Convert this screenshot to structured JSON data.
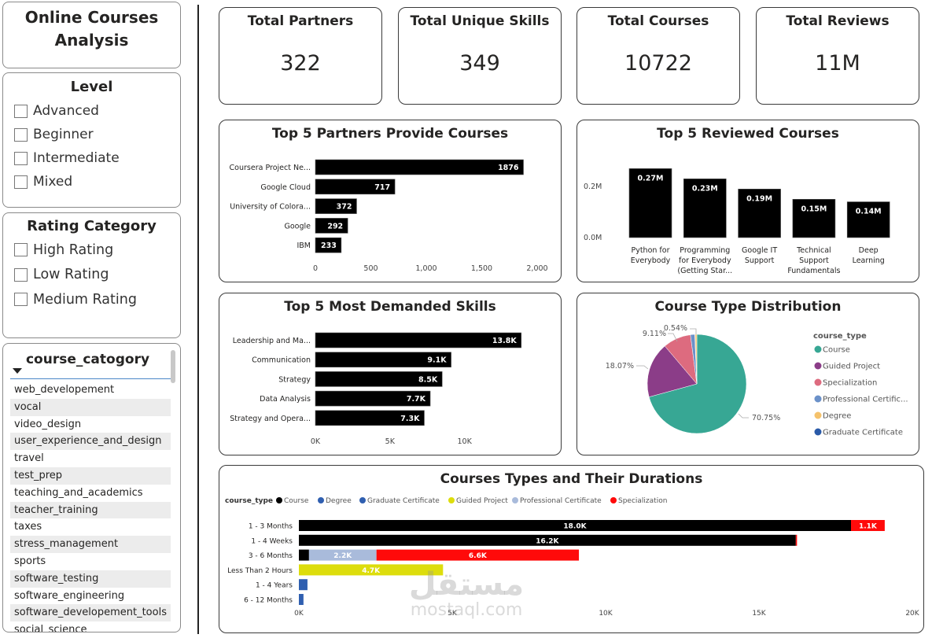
{
  "app": {
    "title": "Online Courses Analysis"
  },
  "level_slicer": {
    "title": "Level",
    "items": [
      "Advanced",
      "Beginner",
      "Intermediate",
      "Mixed"
    ]
  },
  "rating_slicer": {
    "title": "Rating Category",
    "items": [
      "High Rating",
      "Low Rating",
      "Medium Rating"
    ]
  },
  "category_slicer": {
    "title": "course_catogory",
    "items": [
      "web_developement",
      "vocal",
      "video_design",
      "user_experience_and_design",
      "travel",
      "test_prep",
      "teaching_and_academics",
      "teacher_training",
      "taxes",
      "stress_management",
      "sports",
      "software_testing",
      "software_engineering",
      "software_developement_tools",
      "social_science"
    ]
  },
  "kpis": [
    {
      "title": "Total Partners",
      "value": "322"
    },
    {
      "title": "Total Unique Skills",
      "value": "349"
    },
    {
      "title": "Total Courses",
      "value": "10722"
    },
    {
      "title": "Total Reviews",
      "value": "11M"
    }
  ],
  "colors": {
    "bar": "#000000",
    "course": "#37a794",
    "guided_project": "#8b3d88",
    "specialization": "#dd6b7f",
    "professional_certificate": "#6b91c9",
    "degree": "#f5c26b",
    "graduate_certificate": "#2a5aa8",
    "stack_course": "#000000",
    "stack_degree": "#2f5fb0",
    "stack_graduate": "#2f5fb0",
    "stack_guided": "#dddd0c",
    "stack_prof": "#a9bbdb",
    "stack_spec": "#ff0a0a"
  },
  "chart_data": [
    {
      "id": "partners",
      "type": "bar",
      "orientation": "horizontal",
      "title": "Top 5 Partners Provide Courses",
      "categories": [
        "Coursera Project Ne...",
        "Google Cloud",
        "University of Colora...",
        "Google",
        "IBM"
      ],
      "values": [
        1876,
        717,
        372,
        292,
        233
      ],
      "data_labels": [
        "1876",
        "717",
        "372",
        "292",
        "233"
      ],
      "xlim": [
        0,
        2000
      ],
      "xticks": [
        0,
        500,
        1000,
        1500,
        2000
      ],
      "xtick_labels": [
        "0",
        "500",
        "1,000",
        "1,500",
        "2,000"
      ],
      "grid": false
    },
    {
      "id": "reviewed",
      "type": "bar",
      "orientation": "vertical",
      "title": "Top 5 Reviewed Courses",
      "categories": [
        [
          "Python for",
          "Everybody"
        ],
        [
          "Programming",
          "for Everybody",
          "(Getting Star..."
        ],
        [
          "Google IT",
          "Support"
        ],
        [
          "Technical",
          "Support",
          "Fundamentals"
        ],
        [
          "Deep",
          "Learning"
        ]
      ],
      "values": [
        0.27,
        0.23,
        0.19,
        0.15,
        0.14
      ],
      "data_labels": [
        "0.27M",
        "0.23M",
        "0.19M",
        "0.15M",
        "0.14M"
      ],
      "ylim": [
        0,
        0.3
      ],
      "yticks": [
        0,
        0.2
      ],
      "ytick_labels": [
        "0.0M",
        "0.2M"
      ],
      "grid": false
    },
    {
      "id": "skills",
      "type": "bar",
      "orientation": "horizontal",
      "title": "Top 5 Most Demanded Skills",
      "categories": [
        "Leadership and Ma...",
        "Communication",
        "Strategy",
        "Data Analysis",
        "Strategy and Opera..."
      ],
      "values": [
        13800,
        9100,
        8500,
        7700,
        7300
      ],
      "data_labels": [
        "13.8K",
        "9.1K",
        "8.5K",
        "7.7K",
        "7.3K"
      ],
      "xlim": [
        0,
        14500
      ],
      "xticks": [
        0,
        5000,
        10000
      ],
      "xtick_labels": [
        "0K",
        "5K",
        "10K"
      ],
      "grid": false
    },
    {
      "id": "course_type_pie",
      "type": "pie",
      "title": "Course Type Distribution",
      "legend_title": "course_type",
      "legend_position": "right",
      "labels": [
        "Course",
        "Guided Project",
        "Specialization",
        "Professional Certific...",
        "Degree",
        "Graduate Certificate"
      ],
      "values": [
        70.75,
        18.07,
        9.11,
        1.4,
        0.54,
        0.13
      ],
      "data_labels": [
        "70.75%",
        "18.07%",
        "9.11%",
        "",
        "0.54%",
        ""
      ]
    },
    {
      "id": "durations",
      "type": "bar",
      "orientation": "horizontal",
      "stacked": true,
      "title": "Courses Types and Their Durations",
      "legend_title": "course_type",
      "legend_position": "top-left",
      "categories": [
        "1 - 3 Months",
        "1 - 4 Weeks",
        "3 - 6 Months",
        "Less Than 2 Hours",
        "1 - 4 Years",
        "6 - 12 Months"
      ],
      "series": [
        {
          "name": "Course",
          "values": [
            18000,
            16200,
            330,
            0,
            0,
            0
          ]
        },
        {
          "name": "Degree",
          "values": [
            0,
            0,
            0,
            0,
            280,
            0
          ]
        },
        {
          "name": "Graduate Certificate",
          "values": [
            0,
            0,
            0,
            0,
            0,
            150
          ]
        },
        {
          "name": "Guided Project",
          "values": [
            0,
            0,
            0,
            4700,
            0,
            0
          ]
        },
        {
          "name": "Professional Certificate",
          "values": [
            0,
            0,
            2200,
            0,
            0,
            0
          ]
        },
        {
          "name": "Specialization",
          "values": [
            1100,
            40,
            6600,
            0,
            0,
            0
          ]
        }
      ],
      "data_labels": [
        [
          "18.0K",
          "",
          "",
          "",
          "",
          "1.1K"
        ],
        [
          "16.2K",
          "",
          "",
          "",
          "",
          ""
        ],
        [
          "",
          "",
          "",
          "",
          "2.2K",
          "6.6K"
        ],
        [
          "",
          "",
          "",
          "4.7K",
          "",
          ""
        ],
        [
          "",
          "",
          "",
          "",
          "",
          ""
        ],
        [
          "",
          "",
          "",
          "",
          "",
          ""
        ]
      ],
      "xlim": [
        0,
        20000
      ],
      "xticks": [
        0,
        5000,
        10000,
        15000,
        20000
      ],
      "xtick_labels": [
        "0K",
        "5K",
        "10K",
        "15K",
        "20K"
      ],
      "grid": false
    }
  ]
}
